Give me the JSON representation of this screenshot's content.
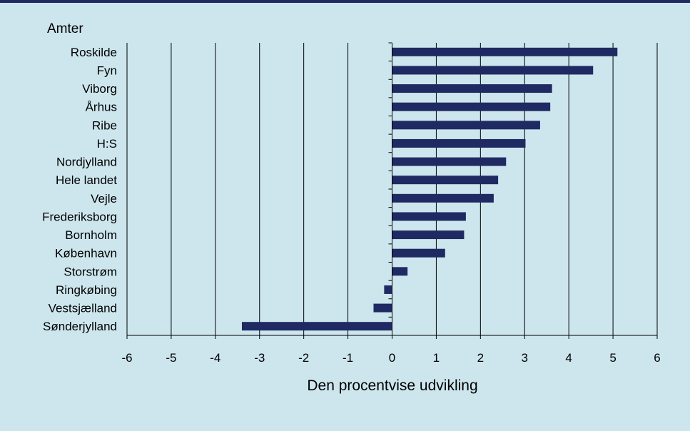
{
  "chart_data": {
    "type": "bar",
    "orientation": "horizontal",
    "title": "",
    "ylabel": "Amter",
    "xlabel": "Den procentvise udvikling",
    "categories": [
      "Roskilde",
      "Fyn",
      "Viborg",
      "Århus",
      "Ribe",
      "H:S",
      "Nordjylland",
      "Hele landet",
      "Vejle",
      "Frederiksborg",
      "Bornholm",
      "København",
      "Storstrøm",
      "Ringkøbing",
      "Vestsjælland",
      "Sønderjylland"
    ],
    "values": [
      5.1,
      4.55,
      3.62,
      3.58,
      3.35,
      3.02,
      2.58,
      2.4,
      2.3,
      1.67,
      1.63,
      1.2,
      0.35,
      -0.18,
      -0.42,
      -3.4
    ],
    "xlim": [
      -6,
      6
    ],
    "xticks": [
      -6,
      -5,
      -4,
      -3,
      -2,
      -1,
      0,
      1,
      2,
      3,
      4,
      5,
      6
    ],
    "grid": "vertical",
    "bar_color": "#1f2a63",
    "background_color": "#cde6ee",
    "accent_color": "#1f2a63"
  }
}
